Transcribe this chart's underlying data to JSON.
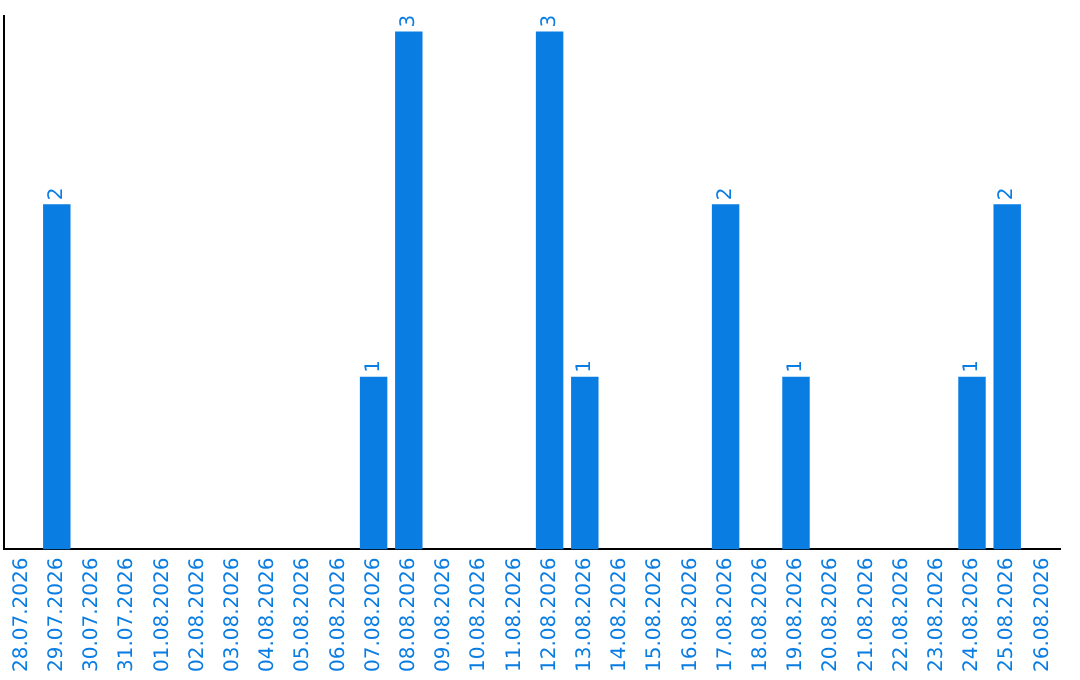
{
  "chart_data": {
    "type": "bar",
    "categories": [
      "28.07.2026",
      "29.07.2026",
      "30.07.2026",
      "31.07.2026",
      "01.08.2026",
      "02.08.2026",
      "03.08.2026",
      "04.08.2026",
      "05.08.2026",
      "06.08.2026",
      "07.08.2026",
      "08.08.2026",
      "09.08.2026",
      "10.08.2026",
      "11.08.2026",
      "12.08.2026",
      "13.08.2026",
      "14.08.2026",
      "15.08.2026",
      "16.08.2026",
      "17.08.2026",
      "18.08.2026",
      "19.08.2026",
      "20.08.2026",
      "21.08.2026",
      "22.08.2026",
      "23.08.2026",
      "24.08.2026",
      "25.08.2026",
      "26.08.2026"
    ],
    "values": [
      0,
      2,
      0,
      0,
      0,
      0,
      0,
      0,
      0,
      0,
      1,
      3,
      0,
      0,
      0,
      3,
      1,
      0,
      0,
      0,
      2,
      0,
      1,
      0,
      0,
      0,
      0,
      1,
      2,
      0
    ],
    "value_labels": [
      null,
      "2",
      null,
      null,
      null,
      null,
      null,
      null,
      null,
      null,
      "1",
      "3",
      null,
      null,
      null,
      "3",
      "1",
      null,
      null,
      null,
      "2",
      null,
      "1",
      null,
      null,
      null,
      null,
      "1",
      "2",
      null
    ],
    "color": "#0a7de3",
    "grid": false,
    "tick_labels": "x"
  }
}
